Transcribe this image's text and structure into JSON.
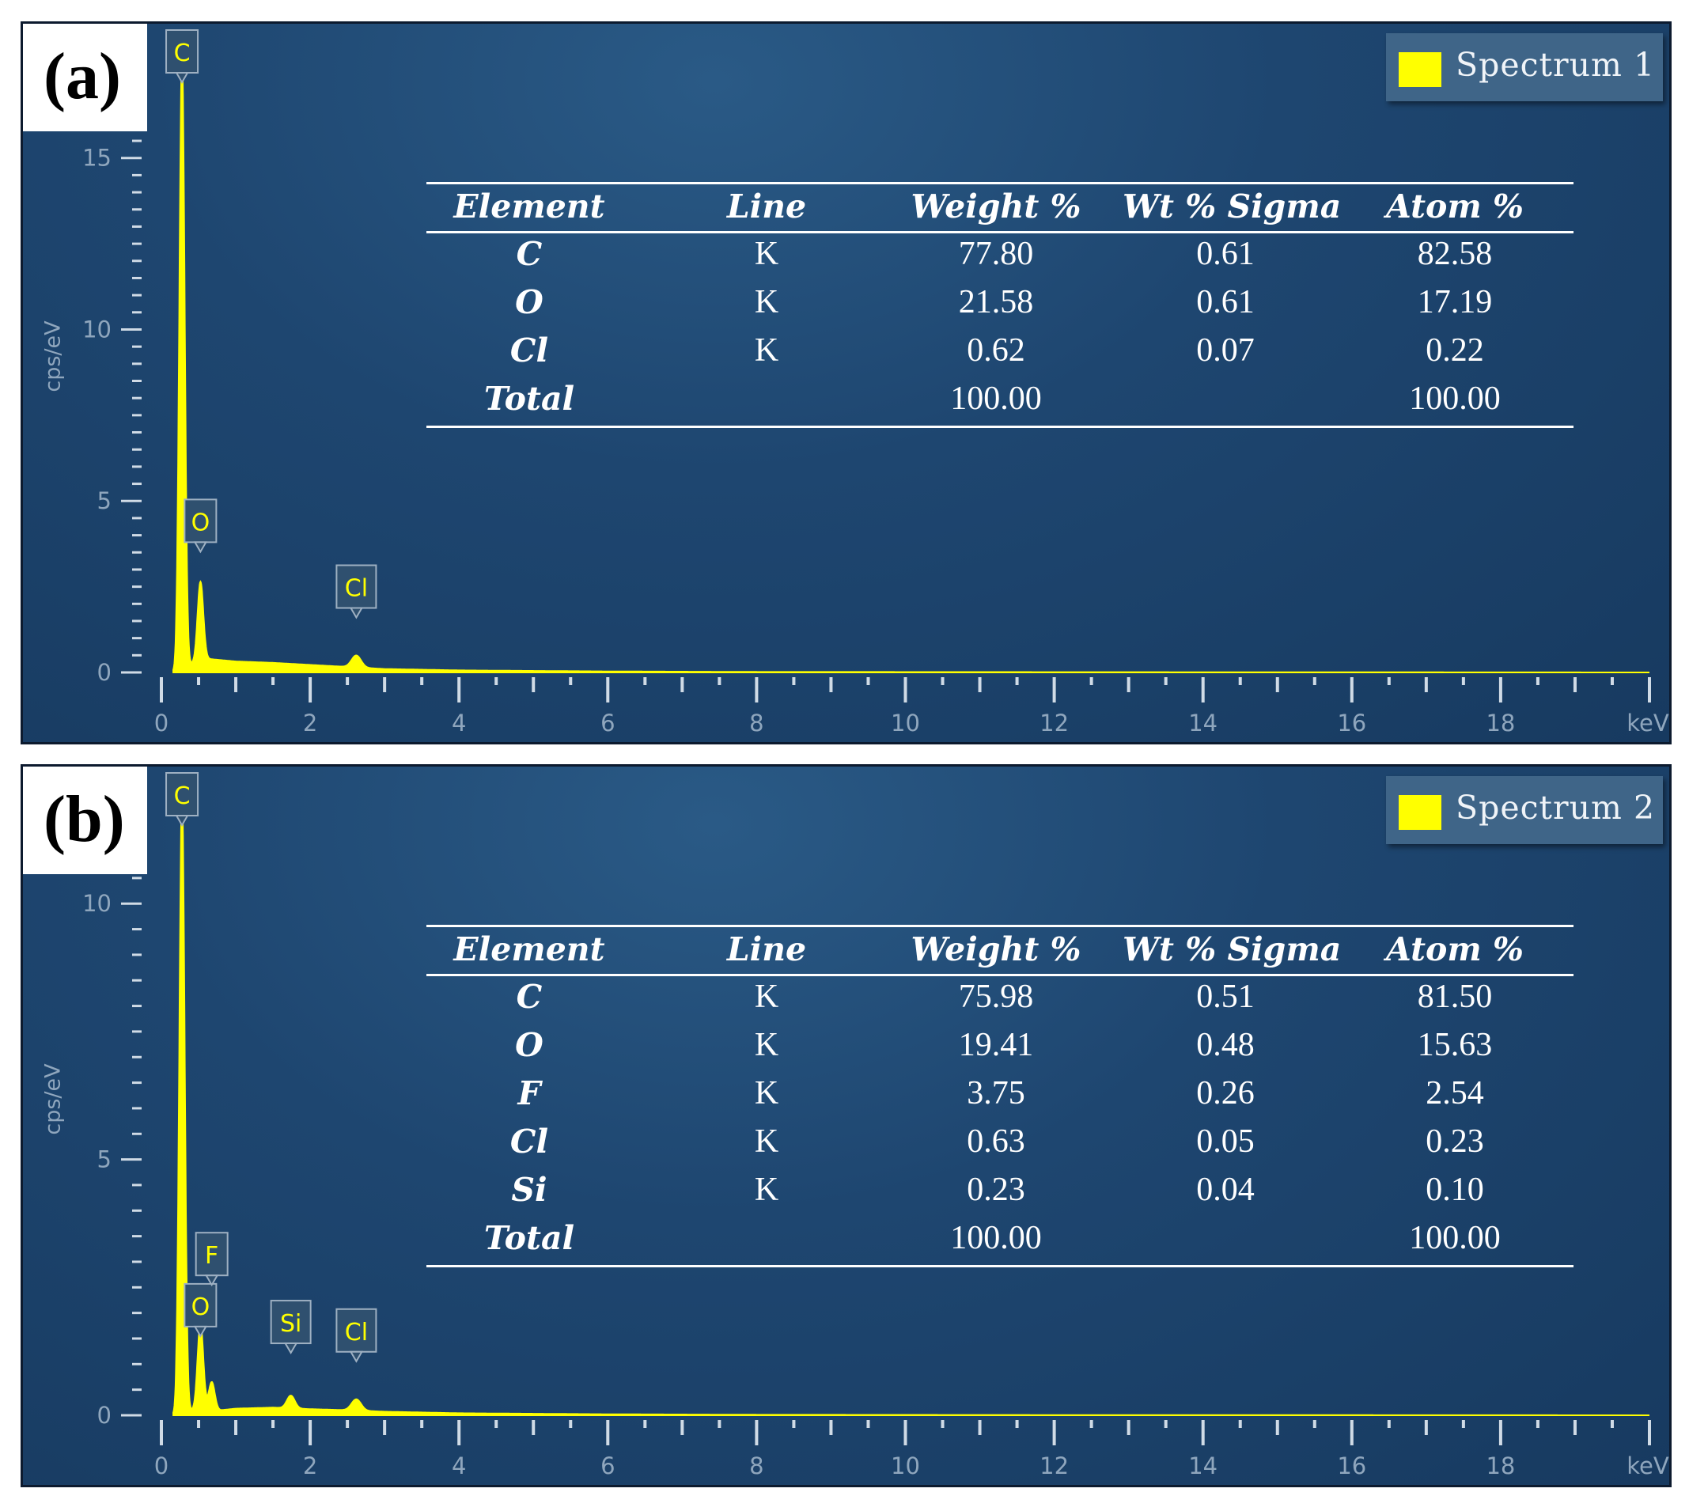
{
  "chart_data": [
    {
      "type": "line",
      "panel_label": "(a)",
      "legend": {
        "name": "Spectrum 1",
        "color": "#ffff00",
        "position": "top-right"
      },
      "ylabel": "cps/eV",
      "xunit": "keV",
      "xlim": [
        0,
        20
      ],
      "ylim": [
        0,
        18.5
      ],
      "xticks": [
        0,
        2,
        4,
        6,
        8,
        10,
        12,
        14,
        16,
        18
      ],
      "yticks": [
        0,
        5,
        10,
        15
      ],
      "series_color": "#ffff00",
      "peaks": [
        {
          "label": "C",
          "x": 0.277,
          "y": 17.8
        },
        {
          "label": "O",
          "x": 0.525,
          "y": 2.3
        },
        {
          "label": "Cl",
          "x": 2.62,
          "y": 0.35
        }
      ],
      "continuum": [
        [
          0.2,
          0.1
        ],
        [
          0.6,
          0.4
        ],
        [
          1.0,
          0.32
        ],
        [
          1.5,
          0.28
        ],
        [
          2.0,
          0.22
        ],
        [
          2.5,
          0.16
        ],
        [
          3.0,
          0.1
        ],
        [
          4.0,
          0.06
        ],
        [
          6.0,
          0.03
        ],
        [
          8.0,
          0.015
        ],
        [
          12.0,
          0.01
        ],
        [
          20.0,
          0.0
        ]
      ],
      "table": {
        "headers": [
          "Element",
          "Line",
          "Weight %",
          "Wt % Sigma",
          "Atom %"
        ],
        "rows": [
          [
            "C",
            "K",
            "77.80",
            "0.61",
            "82.58"
          ],
          [
            "O",
            "K",
            "21.58",
            "0.61",
            "17.19"
          ],
          [
            "Cl",
            "K",
            "0.62",
            "0.07",
            "0.22"
          ],
          [
            "Total",
            "",
            "100.00",
            "",
            "100.00"
          ]
        ]
      }
    },
    {
      "type": "line",
      "panel_label": "(b)",
      "legend": {
        "name": "Spectrum 2",
        "color": "#ffff00",
        "position": "top-right"
      },
      "ylabel": "cps/eV",
      "xunit": "keV",
      "xlim": [
        0,
        20
      ],
      "ylim": [
        0,
        12.4
      ],
      "xticks": [
        0,
        2,
        4,
        6,
        8,
        10,
        12,
        14,
        16,
        18
      ],
      "yticks": [
        0,
        5,
        10
      ],
      "series_color": "#ffff00",
      "peaks": [
        {
          "label": "C",
          "x": 0.277,
          "y": 12.0
        },
        {
          "label": "O",
          "x": 0.525,
          "y": 1.7
        },
        {
          "label": "F",
          "x": 0.677,
          "y": 0.55
        },
        {
          "label": "Si",
          "x": 1.74,
          "y": 0.25
        },
        {
          "label": "Cl",
          "x": 2.62,
          "y": 0.22
        }
      ],
      "continuum": [
        [
          0.2,
          0.1
        ],
        [
          0.8,
          0.1
        ],
        [
          1.0,
          0.13
        ],
        [
          1.5,
          0.15
        ],
        [
          2.0,
          0.12
        ],
        [
          2.5,
          0.1
        ],
        [
          3.0,
          0.07
        ],
        [
          4.0,
          0.04
        ],
        [
          6.0,
          0.02
        ],
        [
          8.0,
          0.01
        ],
        [
          12.0,
          0.005
        ],
        [
          20.0,
          0.0
        ]
      ],
      "table": {
        "headers": [
          "Element",
          "Line",
          "Weight %",
          "Wt % Sigma",
          "Atom %"
        ],
        "rows": [
          [
            "C",
            "K",
            "75.98",
            "0.51",
            "81.50"
          ],
          [
            "O",
            "K",
            "19.41",
            "0.48",
            "15.63"
          ],
          [
            "F",
            "K",
            "3.75",
            "0.26",
            "2.54"
          ],
          [
            "Cl",
            "K",
            "0.63",
            "0.05",
            "0.23"
          ],
          [
            "Si",
            "K",
            "0.23",
            "0.04",
            "0.10"
          ],
          [
            "Total",
            "",
            "100.00",
            "",
            "100.00"
          ]
        ]
      }
    }
  ]
}
